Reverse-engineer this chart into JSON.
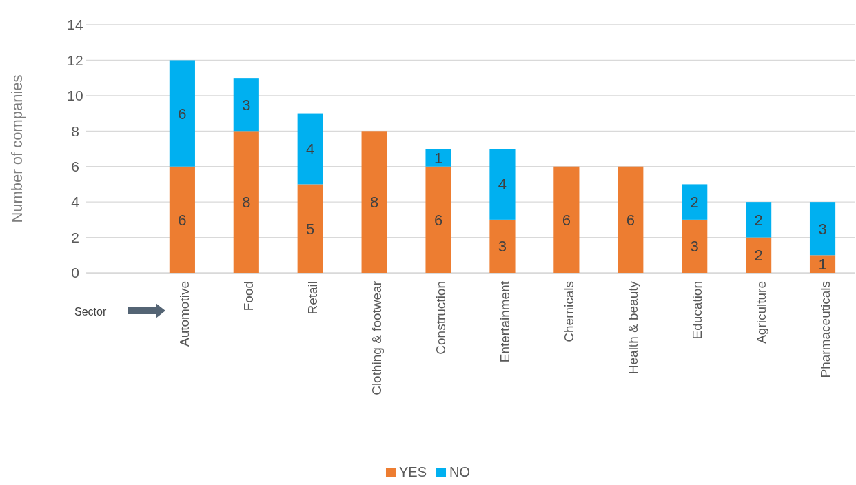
{
  "chart_data": {
    "type": "bar",
    "ylabel": "Number of companies",
    "stacked": true,
    "categories": [
      null,
      "Automotive",
      "Food",
      "Retail",
      "Clothing & footwear",
      "Construction",
      "Entertainment",
      "Chemicals",
      "Health & beauty",
      "Education",
      "Agriculture",
      "Pharmaceuticals"
    ],
    "series": [
      {
        "name": "YES",
        "color": "#ed7d31",
        "values": [
          null,
          6,
          8,
          5,
          8,
          6,
          3,
          6,
          6,
          3,
          2,
          1
        ]
      },
      {
        "name": "NO",
        "color": "#00b0f0",
        "values": [
          null,
          6,
          3,
          4,
          null,
          1,
          4,
          null,
          null,
          2,
          2,
          3
        ]
      }
    ],
    "ylim": [
      0,
      14
    ],
    "yticks": [
      0,
      2,
      4,
      6,
      8,
      10,
      12,
      14
    ],
    "grid": "y",
    "legend": "bottom",
    "data_labels": true,
    "annotations": [
      "Sector"
    ]
  }
}
